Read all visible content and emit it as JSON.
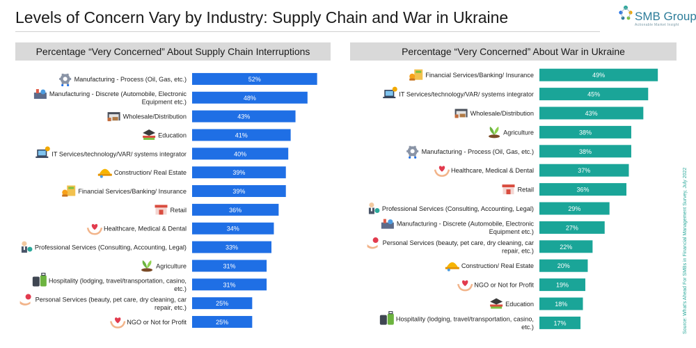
{
  "title": "Levels of Concern Vary by Industry: Supply Chain and War in Ukraine",
  "logo": {
    "name": "SMB Group",
    "tagline": "Actionable Market Insight"
  },
  "source": "Source: What's Ahead For SMBs in Financial Management Survey, July 2022",
  "colors": {
    "left_bar": "#1f6fe5",
    "right_bar": "#1aa598",
    "header_bg": "#d9d9d9"
  },
  "chart_data": [
    {
      "type": "bar",
      "orientation": "horizontal",
      "title": "Percentage “Very Concerned” About Supply Chain Interruptions",
      "xlim": [
        0,
        55
      ],
      "categories": [
        {
          "label": [
            "Manufacturing - Process (Oil, Gas, etc.)"
          ],
          "icon": "gear-icon"
        },
        {
          "label": [
            "Manufacturing - Discrete (Automobile, Electronic",
            "Equipment etc.)"
          ],
          "icon": "factory-icon"
        },
        {
          "label": [
            "Wholesale/Distribution"
          ],
          "icon": "warehouse-icon"
        },
        {
          "label": [
            "Education"
          ],
          "icon": "graduation-cap-icon"
        },
        {
          "label": [
            "IT Services/technology/VAR/ systems integrator"
          ],
          "icon": "laptop-icon"
        },
        {
          "label": [
            "Construction/ Real Estate"
          ],
          "icon": "hardhat-icon"
        },
        {
          "label": [
            "Financial Services/Banking/ Insurance"
          ],
          "icon": "bank-icon"
        },
        {
          "label": [
            "Retail"
          ],
          "icon": "store-icon"
        },
        {
          "label": [
            "Healthcare, Medical & Dental"
          ],
          "icon": "heart-hands-icon"
        },
        {
          "label": [
            "Professional Services (Consulting, Accounting, Legal)"
          ],
          "icon": "person-icon"
        },
        {
          "label": [
            "Agriculture"
          ],
          "icon": "plant-icon"
        },
        {
          "label": [
            "Hospitality (lodging, travel/transportation, casino,",
            "etc.)"
          ],
          "icon": "luggage-icon"
        },
        {
          "label": [
            "Personal Services (beauty, pet care, dry cleaning, car",
            "repair, etc.)"
          ],
          "icon": "hand-icon"
        },
        {
          "label": [
            "NGO or Not for Profit"
          ],
          "icon": "heart-hands-icon"
        }
      ],
      "values": [
        52,
        48,
        43,
        41,
        40,
        39,
        39,
        36,
        34,
        33,
        31,
        31,
        25,
        25
      ],
      "value_labels": [
        "52%",
        "48%",
        "43%",
        "41%",
        "40%",
        "39%",
        "39%",
        "36%",
        "34%",
        "33%",
        "31%",
        "31%",
        "25%",
        "25%"
      ]
    },
    {
      "type": "bar",
      "orientation": "horizontal",
      "title": "Percentage “Very Concerned” About War in Ukraine",
      "xlim": [
        0,
        55
      ],
      "categories": [
        {
          "label": [
            "Financial Services/Banking/ Insurance"
          ],
          "icon": "bank-icon"
        },
        {
          "label": [
            "IT Services/technology/VAR/ systems integrator"
          ],
          "icon": "laptop-icon"
        },
        {
          "label": [
            "Wholesale/Distribution"
          ],
          "icon": "warehouse-icon"
        },
        {
          "label": [
            "Agriculture"
          ],
          "icon": "plant-icon"
        },
        {
          "label": [
            "Manufacturing - Process (Oil, Gas, etc.)"
          ],
          "icon": "gear-icon"
        },
        {
          "label": [
            "Healthcare, Medical & Dental"
          ],
          "icon": "heart-hands-icon"
        },
        {
          "label": [
            "Retail"
          ],
          "icon": "store-icon"
        },
        {
          "label": [
            "Professional Services (Consulting, Accounting, Legal)"
          ],
          "icon": "person-icon"
        },
        {
          "label": [
            "Manufacturing - Discrete (Automobile, Electronic",
            "Equipment etc.)"
          ],
          "icon": "factory-icon"
        },
        {
          "label": [
            "Personal Services (beauty, pet care, dry cleaning, car",
            "repair, etc.)"
          ],
          "icon": "hand-icon"
        },
        {
          "label": [
            "Construction/ Real Estate"
          ],
          "icon": "hardhat-icon"
        },
        {
          "label": [
            "NGO or Not for Profit"
          ],
          "icon": "heart-hands-icon"
        },
        {
          "label": [
            "Education"
          ],
          "icon": "graduation-cap-icon"
        },
        {
          "label": [
            "Hospitality (lodging, travel/transportation, casino,",
            "etc.)"
          ],
          "icon": "luggage-icon"
        }
      ],
      "values": [
        49,
        45,
        43,
        38,
        38,
        37,
        36,
        29,
        27,
        22,
        20,
        19,
        18,
        17
      ],
      "value_labels": [
        "49%",
        "45%",
        "43%",
        "38%",
        "38%",
        "37%",
        "36%",
        "29%",
        "27%",
        "22%",
        "20%",
        "19%",
        "18%",
        "17%"
      ]
    }
  ]
}
